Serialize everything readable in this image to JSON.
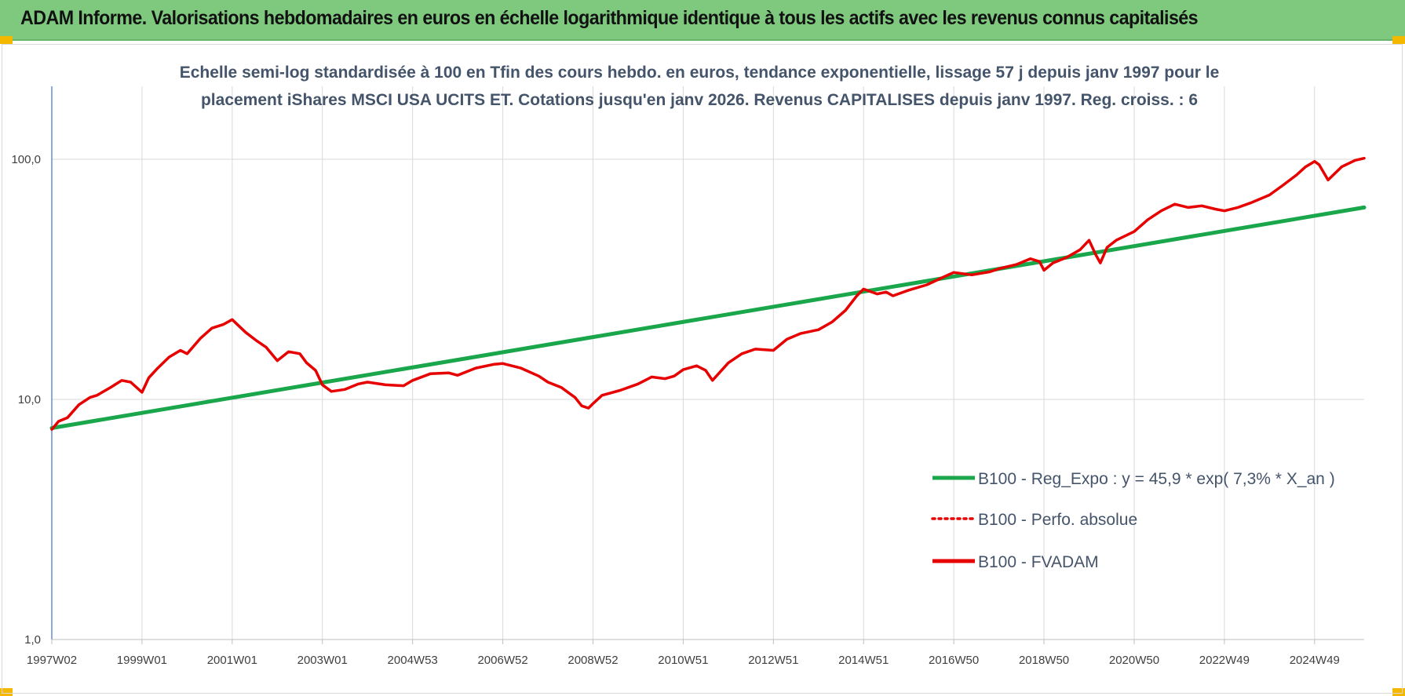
{
  "header": {
    "title": "ADAM Informe. Valorisations hebdomadaires en euros en échelle logarithmique identique à tous les actifs avec les revenus connus capitalisés"
  },
  "chart_data": {
    "type": "line",
    "title_lines": [
      "Echelle semi-log standardisée à 100 en Tfin des cours hebdo. en euros, tendance exponentielle, lissage 57 j depuis janv 1997 pour le",
      "placement iShares MSCI USA UCITS ET. Cotations jusqu'en janv 2026. Revenus CAPITALISES depuis janv 1997. Reg. croiss. : 6"
    ],
    "y_scale": "log",
    "ylim": [
      1,
      200
    ],
    "y_ticks": [
      {
        "value": 1,
        "label": "1,0"
      },
      {
        "value": 10,
        "label": "10,0"
      },
      {
        "value": 100,
        "label": "100,0"
      }
    ],
    "xlim": [
      1997.0,
      2026.1
    ],
    "x_ticks": [
      {
        "value": 1997.0,
        "label": "1997W02"
      },
      {
        "value": 1999.0,
        "label": "1999W01"
      },
      {
        "value": 2001.0,
        "label": "2001W01"
      },
      {
        "value": 2003.0,
        "label": "2003W01"
      },
      {
        "value": 2005.0,
        "label": "2004W53"
      },
      {
        "value": 2007.0,
        "label": "2006W52"
      },
      {
        "value": 2009.0,
        "label": "2008W52"
      },
      {
        "value": 2011.0,
        "label": "2010W51"
      },
      {
        "value": 2013.0,
        "label": "2012W51"
      },
      {
        "value": 2015.0,
        "label": "2014W51"
      },
      {
        "value": 2017.0,
        "label": "2016W50"
      },
      {
        "value": 2019.0,
        "label": "2018W50"
      },
      {
        "value": 2021.0,
        "label": "2020W50"
      },
      {
        "value": 2023.0,
        "label": "2022W49"
      },
      {
        "value": 2025.0,
        "label": "2024W49"
      }
    ],
    "grid": true,
    "legend_position": "bottom-right",
    "series": [
      {
        "name": "B100 - Reg_Expo : y = 45,9 * exp( 7,3% *  X_an )",
        "color": "#1aa64b",
        "style": "solid",
        "x": [
          1997.0,
          2026.1
        ],
        "y": [
          7.6,
          63
        ]
      },
      {
        "name": "B100 - Perfo. absolue",
        "color": "#e60000",
        "style": "dotted",
        "x": [],
        "y": []
      },
      {
        "name": "B100 - FVADAM",
        "color": "#e60000",
        "style": "solid",
        "x": [
          1997.0,
          1997.15,
          1997.35,
          1997.6,
          1997.85,
          1998.0,
          1998.3,
          1998.55,
          1998.75,
          1999.0,
          1999.15,
          1999.35,
          1999.6,
          1999.85,
          2000.0,
          2000.3,
          2000.55,
          2000.8,
          2001.0,
          2001.3,
          2001.55,
          2001.75,
          2002.0,
          2002.25,
          2002.5,
          2002.65,
          2002.85,
          2003.0,
          2003.2,
          2003.5,
          2003.8,
          2004.0,
          2004.4,
          2004.8,
          2005.0,
          2005.4,
          2005.8,
          2006.0,
          2006.4,
          2006.8,
          2007.0,
          2007.4,
          2007.8,
          2008.0,
          2008.3,
          2008.6,
          2008.75,
          2008.9,
          2009.0,
          2009.2,
          2009.6,
          2010.0,
          2010.3,
          2010.6,
          2010.8,
          2011.0,
          2011.3,
          2011.5,
          2011.65,
          2011.85,
          2012.0,
          2012.3,
          2012.6,
          2013.0,
          2013.3,
          2013.6,
          2014.0,
          2014.3,
          2014.6,
          2014.85,
          2015.0,
          2015.3,
          2015.5,
          2015.65,
          2016.0,
          2016.4,
          2016.8,
          2017.0,
          2017.4,
          2017.8,
          2018.0,
          2018.4,
          2018.7,
          2018.9,
          2019.0,
          2019.2,
          2019.5,
          2019.8,
          2020.0,
          2020.15,
          2020.25,
          2020.4,
          2020.6,
          2021.0,
          2021.3,
          2021.6,
          2021.9,
          2022.2,
          2022.5,
          2022.8,
          2023.0,
          2023.3,
          2023.6,
          2024.0,
          2024.3,
          2024.6,
          2024.8,
          2025.0,
          2025.1,
          2025.3,
          2025.6,
          2025.9,
          2026.1
        ],
        "y": [
          7.5,
          8.1,
          8.4,
          9.5,
          10.2,
          10.4,
          11.2,
          12.0,
          11.8,
          10.7,
          12.3,
          13.5,
          15.0,
          16.0,
          15.5,
          18.0,
          19.8,
          20.5,
          21.5,
          19.0,
          17.5,
          16.5,
          14.5,
          15.8,
          15.5,
          14.2,
          13.2,
          11.5,
          10.8,
          11.0,
          11.6,
          11.8,
          11.5,
          11.4,
          12.0,
          12.8,
          12.9,
          12.6,
          13.5,
          14.0,
          14.1,
          13.5,
          12.5,
          11.8,
          11.2,
          10.2,
          9.4,
          9.2,
          9.6,
          10.4,
          10.9,
          11.6,
          12.4,
          12.2,
          12.5,
          13.3,
          13.8,
          13.2,
          12.0,
          13.2,
          14.2,
          15.5,
          16.2,
          16.0,
          17.8,
          18.8,
          19.5,
          21.0,
          23.5,
          27.0,
          28.8,
          27.5,
          28.0,
          27.0,
          28.5,
          30.0,
          32.5,
          33.8,
          33.0,
          34.0,
          35.0,
          36.5,
          38.5,
          37.5,
          34.5,
          37.0,
          39.0,
          42.0,
          46.0,
          40.0,
          37.0,
          43.0,
          46.0,
          50.0,
          56.0,
          61.0,
          65.0,
          63.0,
          64.0,
          62.0,
          61.0,
          63.0,
          66.0,
          71.0,
          78.0,
          86.0,
          93.0,
          98.0,
          95.0,
          82.0,
          93.0,
          99.0,
          101.0
        ]
      }
    ]
  }
}
